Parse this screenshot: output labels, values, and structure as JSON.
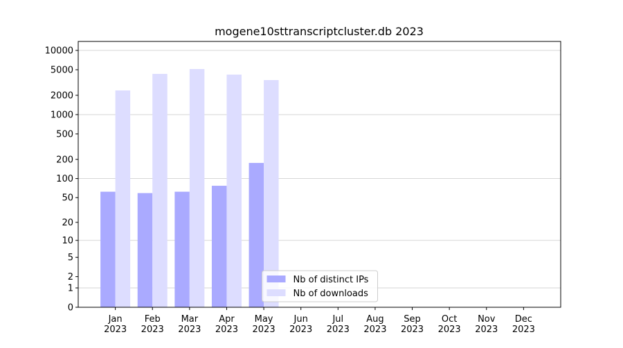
{
  "chart_data": {
    "type": "bar",
    "title": "mogene10sttranscriptcluster.db 2023",
    "categories": [
      [
        "Jan",
        "2023"
      ],
      [
        "Feb",
        "2023"
      ],
      [
        "Mar",
        "2023"
      ],
      [
        "Apr",
        "2023"
      ],
      [
        "May",
        "2023"
      ],
      [
        "Jun",
        "2023"
      ],
      [
        "Jul",
        "2023"
      ],
      [
        "Aug",
        "2023"
      ],
      [
        "Sep",
        "2023"
      ],
      [
        "Oct",
        "2023"
      ],
      [
        "Nov",
        "2023"
      ],
      [
        "Dec",
        "2023"
      ]
    ],
    "series": [
      {
        "name": "Nb of distinct IPs",
        "color": "#aaaaff",
        "values": [
          62,
          59,
          62,
          77,
          176,
          null,
          null,
          null,
          null,
          null,
          null,
          null
        ]
      },
      {
        "name": "Nb of downloads",
        "color": "#ddddff",
        "values": [
          2380,
          4310,
          5130,
          4200,
          3450,
          null,
          null,
          null,
          null,
          null,
          null,
          null
        ]
      }
    ],
    "yscale": "log1p",
    "ylim": [
      0,
      13800
    ],
    "yticks": [
      0,
      1,
      2,
      5,
      10,
      20,
      50,
      100,
      200,
      500,
      1000,
      2000,
      5000,
      10000
    ],
    "grid_ticks": [
      1,
      10,
      100,
      1000,
      10000
    ],
    "grid": true,
    "legend": "lower center"
  }
}
